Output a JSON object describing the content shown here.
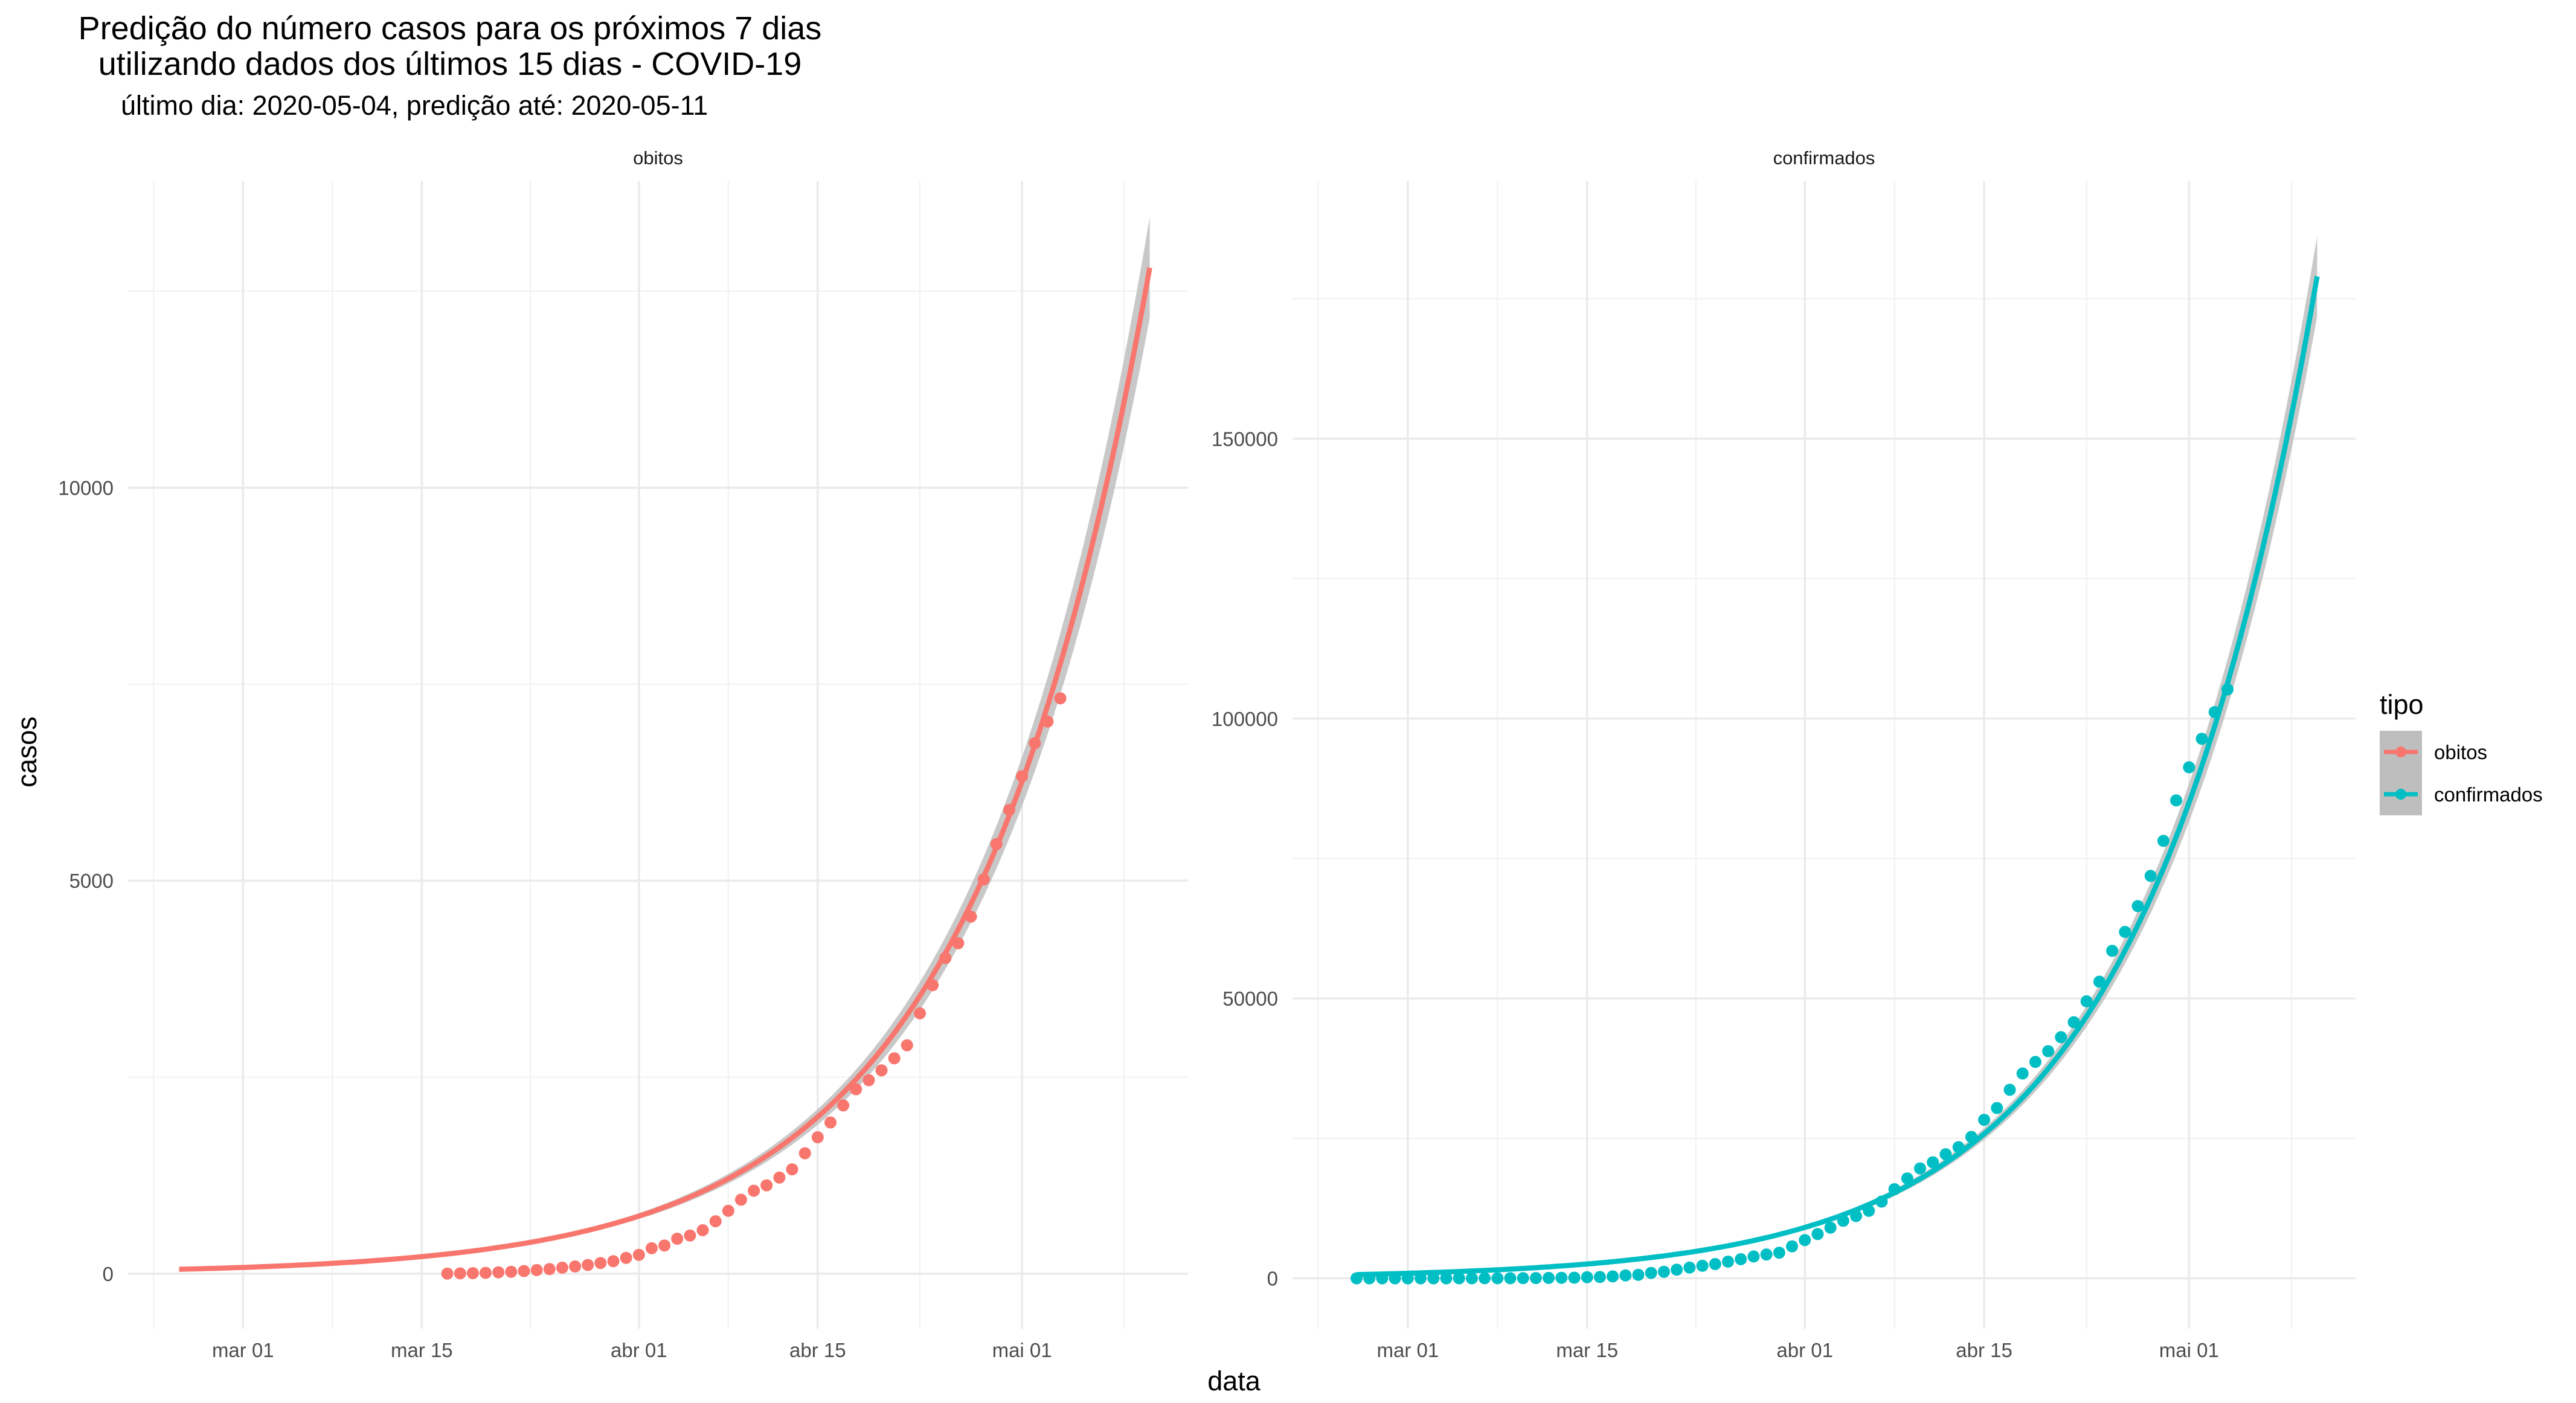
{
  "title_lines": [
    "Predição do número casos para os próximos 7 dias",
    "utilizando dados dos últimos 15 dias - COVID-19"
  ],
  "subtitle": "último dia: 2020-05-04, predição até: 2020-05-11",
  "xlabel": "data",
  "ylabel": "casos",
  "legend": {
    "title": "tipo",
    "placement": "right",
    "entries": [
      {
        "label": "obitos",
        "color": "#F8766D"
      },
      {
        "label": "confirmados",
        "color": "#00BFC4"
      }
    ]
  },
  "ribbon_color": "#BEBEBE",
  "chart_data": [
    {
      "type": "scatter",
      "panel": "obitos",
      "grid": true,
      "x_range": [
        "2020-02-21",
        "2020-05-14"
      ],
      "x_ticks": [
        {
          "date": "2020-03-01",
          "label": "mar 01"
        },
        {
          "date": "2020-03-15",
          "label": "mar 15"
        },
        {
          "date": "2020-04-01",
          "label": "abr 01"
        },
        {
          "date": "2020-04-15",
          "label": "abr 15"
        },
        {
          "date": "2020-05-01",
          "label": "mai 01"
        }
      ],
      "ylim": [
        -700,
        13900
      ],
      "y_ticks": [
        0,
        5000,
        10000
      ],
      "y_tick_labels": [
        "0",
        "5000",
        "10000"
      ],
      "series": [
        {
          "name": "obitos",
          "color": "#F8766D",
          "points": [
            [
              "2020-03-17",
              1
            ],
            [
              "2020-03-18",
              4
            ],
            [
              "2020-03-19",
              7
            ],
            [
              "2020-03-20",
              11
            ],
            [
              "2020-03-21",
              18
            ],
            [
              "2020-03-22",
              25
            ],
            [
              "2020-03-23",
              34
            ],
            [
              "2020-03-24",
              46
            ],
            [
              "2020-03-25",
              59
            ],
            [
              "2020-03-26",
              77
            ],
            [
              "2020-03-27",
              92
            ],
            [
              "2020-03-28",
              111
            ],
            [
              "2020-03-29",
              136
            ],
            [
              "2020-03-30",
              159
            ],
            [
              "2020-03-31",
              201
            ],
            [
              "2020-04-01",
              240
            ],
            [
              "2020-04-02",
              324
            ],
            [
              "2020-04-03",
              359
            ],
            [
              "2020-04-04",
              445
            ],
            [
              "2020-04-05",
              486
            ],
            [
              "2020-04-06",
              553
            ],
            [
              "2020-04-07",
              667
            ],
            [
              "2020-04-08",
              800
            ],
            [
              "2020-04-09",
              941
            ],
            [
              "2020-04-10",
              1056
            ],
            [
              "2020-04-11",
              1124
            ],
            [
              "2020-04-12",
              1223
            ],
            [
              "2020-04-13",
              1328
            ],
            [
              "2020-04-14",
              1532
            ],
            [
              "2020-04-15",
              1736
            ],
            [
              "2020-04-16",
              1924
            ],
            [
              "2020-04-17",
              2141
            ],
            [
              "2020-04-18",
              2347
            ],
            [
              "2020-04-19",
              2462
            ],
            [
              "2020-04-20",
              2587
            ],
            [
              "2020-04-21",
              2741
            ],
            [
              "2020-04-22",
              2906
            ],
            [
              "2020-04-23",
              3313
            ],
            [
              "2020-04-24",
              3670
            ],
            [
              "2020-04-25",
              4016
            ],
            [
              "2020-04-26",
              4205
            ],
            [
              "2020-04-27",
              4543
            ],
            [
              "2020-04-28",
              5017
            ],
            [
              "2020-04-29",
              5466
            ],
            [
              "2020-04-30",
              5901
            ],
            [
              "2020-05-01",
              6329
            ],
            [
              "2020-05-02",
              6750
            ],
            [
              "2020-05-03",
              7025
            ],
            [
              "2020-05-04",
              7321
            ]
          ],
          "fit": {
            "start": "2020-02-25",
            "end": "2020-05-11",
            "end_value": 12800,
            "growth_per_day": 0.0715,
            "band_fraction": 0.05
          }
        }
      ]
    },
    {
      "type": "scatter",
      "panel": "confirmados",
      "grid": true,
      "x_range": [
        "2020-02-21",
        "2020-05-14"
      ],
      "x_ticks": [
        {
          "date": "2020-03-01",
          "label": "mar 01"
        },
        {
          "date": "2020-03-15",
          "label": "mar 15"
        },
        {
          "date": "2020-04-01",
          "label": "abr 01"
        },
        {
          "date": "2020-04-15",
          "label": "abr 15"
        },
        {
          "date": "2020-05-01",
          "label": "mai 01"
        }
      ],
      "ylim": [
        -9000,
        196000
      ],
      "y_ticks": [
        0,
        50000,
        100000,
        150000
      ],
      "y_tick_labels": [
        "0",
        "50000",
        "100000",
        "150000"
      ],
      "series": [
        {
          "name": "confirmados",
          "color": "#00BFC4",
          "points": [
            [
              "2020-02-26",
              1
            ],
            [
              "2020-02-27",
              1
            ],
            [
              "2020-02-28",
              1
            ],
            [
              "2020-02-29",
              2
            ],
            [
              "2020-03-01",
              2
            ],
            [
              "2020-03-02",
              2
            ],
            [
              "2020-03-03",
              2
            ],
            [
              "2020-03-04",
              3
            ],
            [
              "2020-03-05",
              8
            ],
            [
              "2020-03-06",
              13
            ],
            [
              "2020-03-07",
              19
            ],
            [
              "2020-03-08",
              25
            ],
            [
              "2020-03-09",
              25
            ],
            [
              "2020-03-10",
              34
            ],
            [
              "2020-03-11",
              52
            ],
            [
              "2020-03-12",
              77
            ],
            [
              "2020-03-13",
              98
            ],
            [
              "2020-03-14",
              121
            ],
            [
              "2020-03-15",
              200
            ],
            [
              "2020-03-16",
              234
            ],
            [
              "2020-03-17",
              346
            ],
            [
              "2020-03-18",
              529
            ],
            [
              "2020-03-19",
              640
            ],
            [
              "2020-03-20",
              970
            ],
            [
              "2020-03-21",
              1178
            ],
            [
              "2020-03-22",
              1546
            ],
            [
              "2020-03-23",
              1924
            ],
            [
              "2020-03-24",
              2247
            ],
            [
              "2020-03-25",
              2554
            ],
            [
              "2020-03-26",
              2985
            ],
            [
              "2020-03-27",
              3417
            ],
            [
              "2020-03-28",
              3904
            ],
            [
              "2020-03-29",
              4256
            ],
            [
              "2020-03-30",
              4579
            ],
            [
              "2020-03-31",
              5717
            ],
            [
              "2020-04-01",
              6836
            ],
            [
              "2020-04-02",
              7910
            ],
            [
              "2020-04-03",
              9056
            ],
            [
              "2020-04-04",
              10278
            ],
            [
              "2020-04-05",
              11130
            ],
            [
              "2020-04-06",
              12056
            ],
            [
              "2020-04-07",
              13717
            ],
            [
              "2020-04-08",
              15927
            ],
            [
              "2020-04-09",
              17857
            ],
            [
              "2020-04-10",
              19638
            ],
            [
              "2020-04-11",
              20727
            ],
            [
              "2020-04-12",
              22169
            ],
            [
              "2020-04-13",
              23430
            ],
            [
              "2020-04-14",
              25262
            ],
            [
              "2020-04-15",
              28320
            ],
            [
              "2020-04-16",
              30425
            ],
            [
              "2020-04-17",
              33682
            ],
            [
              "2020-04-18",
              36599
            ],
            [
              "2020-04-19",
              38654
            ],
            [
              "2020-04-20",
              40581
            ],
            [
              "2020-04-21",
              43079
            ],
            [
              "2020-04-22",
              45757
            ],
            [
              "2020-04-23",
              49492
            ],
            [
              "2020-04-24",
              52995
            ],
            [
              "2020-04-25",
              58509
            ],
            [
              "2020-04-26",
              61888
            ],
            [
              "2020-04-27",
              66501
            ],
            [
              "2020-04-28",
              71886
            ],
            [
              "2020-04-29",
              78162
            ],
            [
              "2020-04-30",
              85380
            ],
            [
              "2020-05-01",
              91299
            ],
            [
              "2020-05-02",
              96396
            ],
            [
              "2020-05-03",
              101147
            ],
            [
              "2020-05-04",
              105222
            ]
          ],
          "fit": {
            "start": "2020-02-26",
            "end": "2020-05-11",
            "end_value": 179000,
            "growth_per_day": 0.0745,
            "band_fraction": 0.04
          }
        }
      ]
    }
  ]
}
